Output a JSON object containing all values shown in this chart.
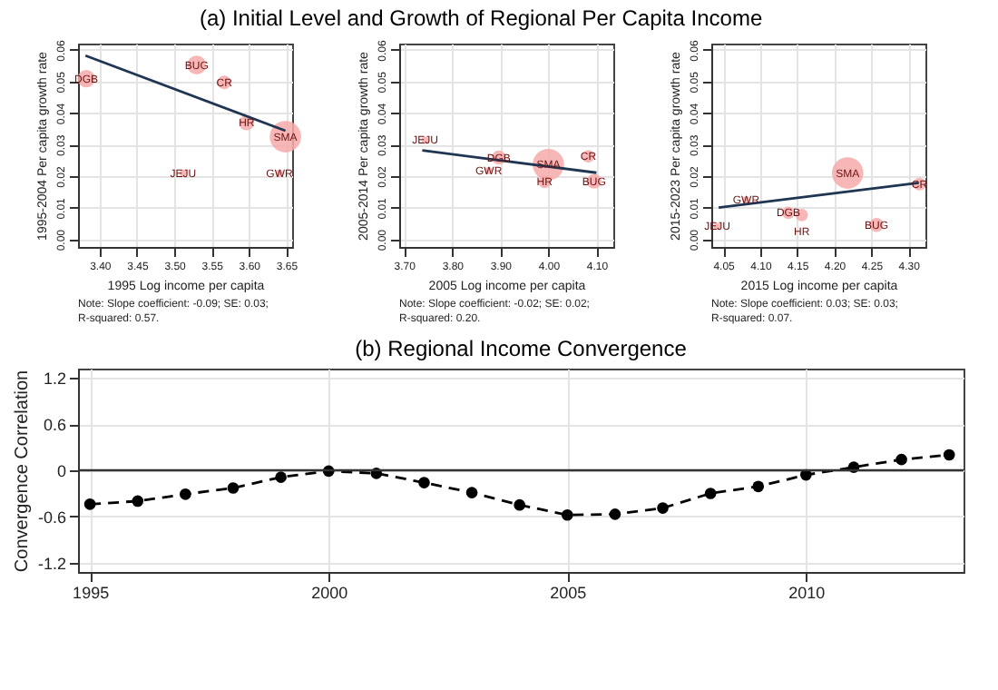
{
  "chart_data": [
    {
      "type": "bubble",
      "title": "(a) Initial Level and Growth of Regional Per Capita Income",
      "xlabel": "1995 Log income per capita",
      "ylabel": "1995-2004 Per capita growth rate",
      "xlim": [
        3.371,
        3.658
      ],
      "ylim": [
        -0.0024,
        0.062
      ],
      "xticks": [
        {
          "value": 3.4,
          "label": "3.40"
        },
        {
          "value": 3.45,
          "label": "3.45"
        },
        {
          "value": 3.5,
          "label": "3.50"
        },
        {
          "value": 3.55,
          "label": "3.55"
        },
        {
          "value": 3.6,
          "label": "3.60"
        },
        {
          "value": 3.65,
          "label": "3.65"
        }
      ],
      "yticks": [
        {
          "value": 0,
          "label": "0.00"
        },
        {
          "value": 0.01,
          "label": "0.01"
        },
        {
          "value": 0.02,
          "label": "0.02"
        },
        {
          "value": 0.03,
          "label": "0.03"
        },
        {
          "value": 0.04,
          "label": "0.04"
        },
        {
          "value": 0.05,
          "label": "0.05"
        },
        {
          "value": 0.06,
          "label": "0.06"
        }
      ],
      "grid": true,
      "series": [
        {
          "type": "bubble",
          "color": "#f7aaaa",
          "x": [
            3.382,
            3.53,
            3.567,
            3.597,
            3.649,
            3.512,
            3.641
          ],
          "values": [
            0.0509,
            0.0552,
            0.0497,
            0.0369,
            0.0325,
            0.021,
            0.021
          ],
          "sizes": [
            0.31,
            0.36,
            0.19,
            0.23,
            1,
            0.05,
            0.05
          ]
        },
        {
          "type": "line",
          "color": "#1f3552",
          "x": [
            3.381,
            3.649
          ],
          "values": [
            0.0582,
            0.0344
          ]
        }
      ],
      "annotations": [
        {
          "text": "DGB",
          "x": 3.382,
          "y": 0.0509
        },
        {
          "text": "BUG",
          "x": 3.53,
          "y": 0.0552
        },
        {
          "text": "CR",
          "x": 3.567,
          "y": 0.0497
        },
        {
          "text": "HR",
          "x": 3.597,
          "y": 0.0369
        },
        {
          "text": "SMA",
          "x": 3.649,
          "y": 0.0325
        },
        {
          "text": "JEJU",
          "x": 3.512,
          "y": 0.021
        },
        {
          "text": "GWR",
          "x": 3.641,
          "y": 0.021
        },
        "Note: Slope coefficient: -0.09; SE: 0.03;\nR-squared: 0.57."
      ]
    },
    {
      "type": "bubble",
      "xlabel": "2005 Log income per capita",
      "ylabel": "2005-2014 Per capita growth rate",
      "xlim": [
        3.69,
        4.135
      ],
      "ylim": [
        -0.0024,
        0.062
      ],
      "xticks": [
        {
          "value": 3.7,
          "label": "3.70"
        },
        {
          "value": 3.8,
          "label": "3.80"
        },
        {
          "value": 3.9,
          "label": "3.90"
        },
        {
          "value": 4.0,
          "label": "4.00"
        },
        {
          "value": 4.1,
          "label": "4.10"
        }
      ],
      "yticks": [
        {
          "value": 0,
          "label": "0.00"
        },
        {
          "value": 0.01,
          "label": "0.01"
        },
        {
          "value": 0.02,
          "label": "0.02"
        },
        {
          "value": 0.03,
          "label": "0.03"
        },
        {
          "value": 0.04,
          "label": "0.04"
        },
        {
          "value": 0.05,
          "label": "0.05"
        },
        {
          "value": 0.06,
          "label": "0.06"
        }
      ],
      "grid": true,
      "series": [
        {
          "type": "bubble",
          "color": "#f7aaaa",
          "x": [
            3.744,
            3.897,
            3.876,
            4.0,
            3.992,
            4.083,
            4.095
          ],
          "values": [
            0.0314,
            0.0259,
            0.0218,
            0.0237,
            0.0182,
            0.0263,
            0.0184
          ],
          "sizes": [
            0.05,
            0.2,
            0.05,
            1,
            0.16,
            0.16,
            0.22
          ]
        },
        {
          "type": "line",
          "color": "#1f3552",
          "x": [
            3.738,
            4.1
          ],
          "values": [
            0.0282,
            0.0211
          ]
        }
      ],
      "annotations": [
        {
          "text": "JEJU",
          "x": 3.744,
          "y": 0.0314
        },
        {
          "text": "DGB",
          "x": 3.897,
          "y": 0.0259
        },
        {
          "text": "GWR",
          "x": 3.876,
          "y": 0.0218
        },
        {
          "text": "SMA",
          "x": 4.0,
          "y": 0.0237
        },
        {
          "text": "HR",
          "x": 3.992,
          "y": 0.0182
        },
        {
          "text": "CR",
          "x": 4.083,
          "y": 0.0263
        },
        {
          "text": "BUG",
          "x": 4.095,
          "y": 0.0184
        },
        "Note: Slope coefficient: -0.02; SE: 0.02;\nR-squared: 0.20."
      ]
    },
    {
      "type": "bubble",
      "xlabel": "2015 Log income per capita",
      "ylabel": "2015-2023 Per capita growth rate",
      "xlim": [
        4.034,
        4.323
      ],
      "ylim": [
        -0.0024,
        0.062
      ],
      "xticks": [
        {
          "value": 4.05,
          "label": "4.05"
        },
        {
          "value": 4.1,
          "label": "4.10"
        },
        {
          "value": 4.15,
          "label": "4.15"
        },
        {
          "value": 4.2,
          "label": "4.20"
        },
        {
          "value": 4.25,
          "label": "4.25"
        },
        {
          "value": 4.3,
          "label": "4.30"
        }
      ],
      "yticks": [
        {
          "value": 0,
          "label": "0.00"
        },
        {
          "value": 0.01,
          "label": "0.01"
        },
        {
          "value": 0.02,
          "label": "0.02"
        },
        {
          "value": 0.03,
          "label": "0.03"
        },
        {
          "value": 0.04,
          "label": "0.04"
        },
        {
          "value": 0.05,
          "label": "0.05"
        },
        {
          "value": 0.06,
          "label": "0.06"
        }
      ],
      "grid": true,
      "series": [
        {
          "type": "bubble",
          "color": "#f7aaaa",
          "x": [
            4.042,
            4.081,
            4.138,
            4.156,
            4.218,
            4.257,
            4.315
          ],
          "values": [
            0.0041,
            0.0125,
            0.0084,
            0.0077,
            0.021,
            0.0046,
            0.0175
          ],
          "sizes": [
            0.05,
            0.05,
            0.16,
            0.16,
            1,
            0.2,
            0.16
          ]
        },
        {
          "type": "line",
          "color": "#1f3552",
          "x": [
            4.044,
            4.314
          ],
          "values": [
            0.0101,
            0.0179
          ]
        }
      ],
      "annotations": [
        {
          "text": "JEJU",
          "x": 4.042,
          "y": 0.0041
        },
        {
          "text": "GWR",
          "x": 4.081,
          "y": 0.0125
        },
        {
          "text": "DGB",
          "x": 4.138,
          "y": 0.0084
        },
        {
          "text": "HR",
          "x": 4.156,
          "y": 0.0077
        },
        {
          "text": "SMA",
          "x": 4.218,
          "y": 0.021
        },
        {
          "text": "BUG",
          "x": 4.257,
          "y": 0.0046
        },
        {
          "text": "CR",
          "x": 4.315,
          "y": 0.0175
        },
        "Note: Slope coefficient: 0.03; SE: 0.03;\nR-squared: 0.07."
      ]
    },
    {
      "type": "line",
      "title": "(b) Regional Income Convergence",
      "ylabel": "Convergence Correlation",
      "x": [
        1995,
        1996,
        1997,
        1998,
        1999,
        2000,
        2001,
        2002,
        2003,
        2004,
        2005,
        2006,
        2007,
        2008,
        2009,
        2010,
        2011,
        2012,
        2013
      ],
      "xlim": [
        1994.75,
        2013.3
      ],
      "ylim": [
        -1.32,
        1.32
      ],
      "xticks": [
        1995,
        2000,
        2005,
        2010
      ],
      "yticks": [
        -1.2,
        -0.6,
        0,
        0.6,
        1.2
      ],
      "grid": true,
      "marker": "circle",
      "line_style": "dashed",
      "series": [
        {
          "color": "#000000",
          "values": [
            -0.44,
            -0.4,
            -0.31,
            -0.23,
            -0.09,
            -0.01,
            -0.04,
            -0.16,
            -0.29,
            -0.45,
            -0.58,
            -0.57,
            -0.49,
            -0.3,
            -0.21,
            -0.06,
            0.04,
            0.14,
            0.2
          ]
        }
      ],
      "ref_lines": [
        {
          "axis": "y",
          "value": 0,
          "color": "#333333"
        }
      ]
    }
  ]
}
